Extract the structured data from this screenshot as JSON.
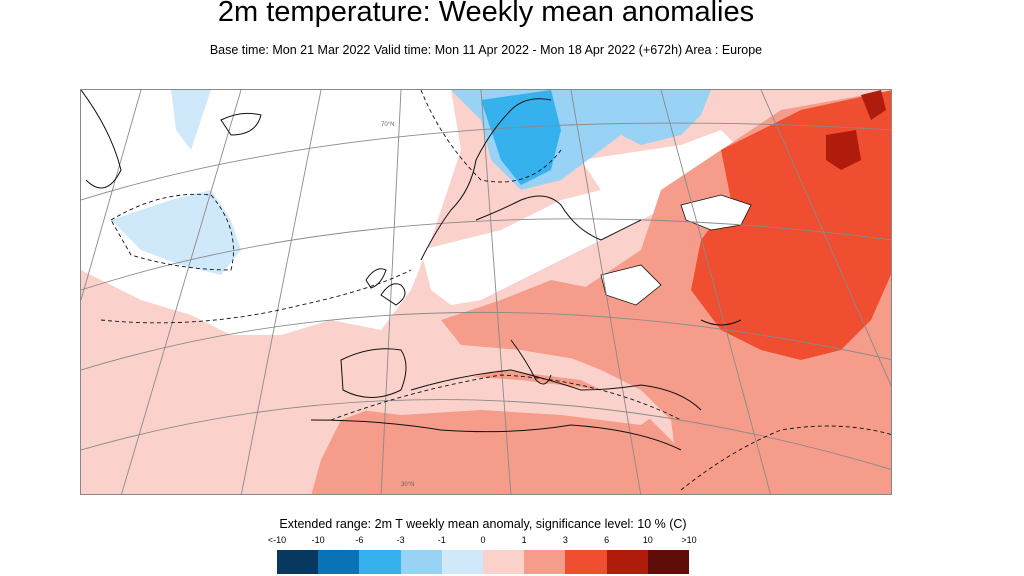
{
  "header": {
    "title": "2m temperature: Weekly mean anomalies",
    "subtitle": "Base time: Mon 21 Mar 2022 Valid time: Mon 11 Apr 2022 - Mon 18 Apr 2022 (+672h) Area : Europe"
  },
  "map": {
    "grid_labels": [
      "70°N",
      "30°N"
    ],
    "colors": {
      "land_outline": "#111111",
      "graticule": "#8a8a8a",
      "cold_light": "#cfe9fb",
      "cold": "#98d2f5",
      "cold_strong": "#35b2ee",
      "warm_light": "#fbd2cb",
      "warm": "#f59c8a",
      "warm_strong": "#ef4e30",
      "warm_extreme": "#b01c0c"
    }
  },
  "legend": {
    "caption": "Extended range: 2m T weekly mean anomaly, significance level: 10 % (C)",
    "ticks": [
      "<-10",
      "-10",
      "-6",
      "-3",
      "-1",
      "0",
      "1",
      "3",
      "6",
      "10",
      ">10"
    ],
    "colors": [
      "#08385e",
      "#0a73b7",
      "#35b2ee",
      "#98d2f5",
      "#cfe9fb",
      "#ffffff",
      "#fbd2cb",
      "#f59c8a",
      "#ef4e30",
      "#b01c0c",
      "#5e0d08"
    ]
  }
}
